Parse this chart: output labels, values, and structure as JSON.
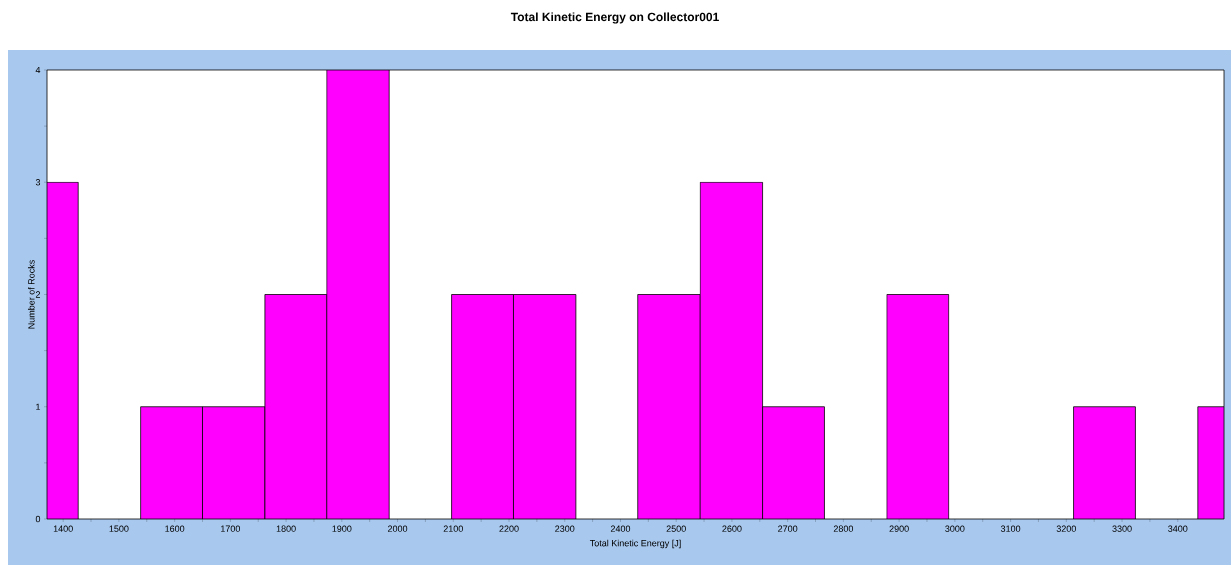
{
  "chart_data": {
    "type": "histogram",
    "title": "Total Kinetic Energy on Collector001",
    "xlabel": "Total Kinetic Energy [J]",
    "ylabel": "Number of Rocks",
    "bins": [
      1371,
      1427,
      1539,
      1650,
      1762,
      1873,
      1985,
      2097,
      2208,
      2320,
      2431,
      2543,
      2655,
      2766,
      2878,
      2989,
      3213,
      3324,
      3436,
      3483
    ],
    "values": [
      3,
      0,
      1,
      1,
      2,
      4,
      0,
      2,
      2,
      0,
      2,
      3,
      1,
      0,
      2,
      0,
      1,
      0,
      1
    ],
    "color": "#ff00ff",
    "xlim": [
      1371,
      3483
    ],
    "xticks": [
      1400,
      1500,
      1600,
      1700,
      1800,
      1900,
      2000,
      2100,
      2200,
      2300,
      2400,
      2500,
      2600,
      2700,
      2800,
      2900,
      3000,
      3100,
      3200,
      3300,
      3400
    ],
    "ylim": [
      0,
      4
    ],
    "yticks": [
      0,
      1,
      2,
      3,
      4
    ],
    "grid": false
  }
}
